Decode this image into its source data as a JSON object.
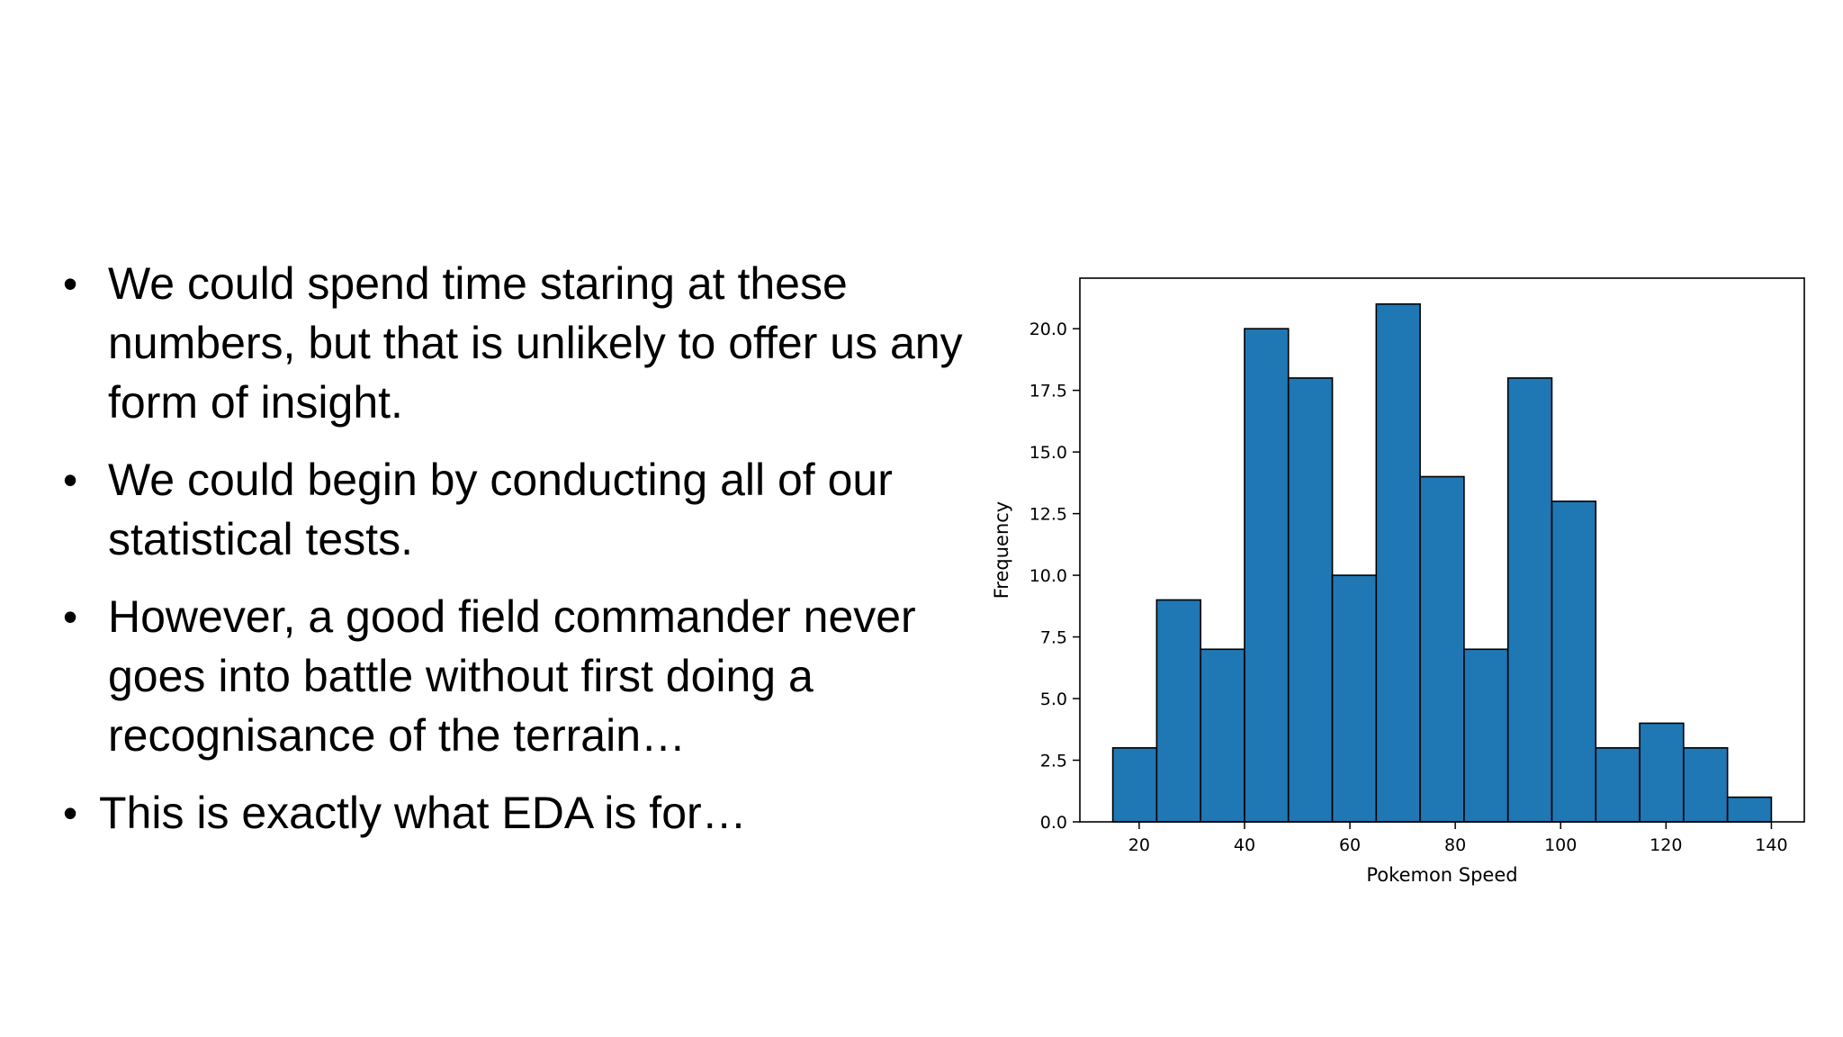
{
  "bullets": [
    "We could spend time staring at these numbers, but that is unlikely to offer us any form of insight.",
    "We could begin by conducting all of our statistical tests.",
    "However, a good field commander never goes into battle without first doing a recognisance of the terrain…",
    "This is exactly what EDA is for…"
  ],
  "bullet_glyph": "•",
  "chart_data": {
    "type": "bar",
    "title": "",
    "xlabel": "Pokemon Speed",
    "ylabel": "Frequency",
    "bin_edges": [
      15,
      23.33,
      31.67,
      40,
      48.33,
      56.67,
      65,
      73.33,
      81.67,
      90,
      98.33,
      106.67,
      115,
      123.33,
      131.67,
      140
    ],
    "values": [
      3,
      9,
      7,
      20,
      18,
      10,
      21,
      14,
      7,
      18,
      13,
      3,
      4,
      3,
      1
    ],
    "xlim": [
      8.75,
      146.25
    ],
    "ylim": [
      0,
      22.05
    ],
    "xticks": [
      20,
      40,
      60,
      80,
      100,
      120,
      140
    ],
    "xtick_labels": [
      "20",
      "40",
      "60",
      "80",
      "100",
      "120",
      "140"
    ],
    "yticks": [
      0,
      2.5,
      5,
      7.5,
      10,
      12.5,
      15,
      17.5,
      20
    ],
    "ytick_labels": [
      "0.0",
      "2.5",
      "5.0",
      "7.5",
      "10.0",
      "12.5",
      "15.0",
      "17.5",
      "20.0"
    ],
    "bar_color": "#1f77b4",
    "edge_color": "#000000",
    "grid": false
  }
}
